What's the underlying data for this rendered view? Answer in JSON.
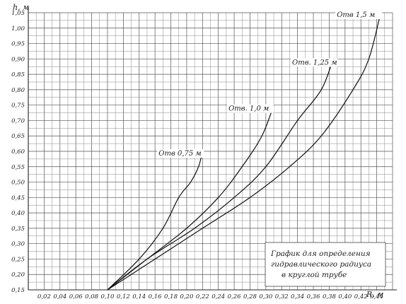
{
  "chart_data": {
    "type": "line",
    "xlabel": "R, м",
    "ylabel": "h, м",
    "xlim": [
      0.0,
      0.46
    ],
    "ylim": [
      0.15,
      1.05
    ],
    "x_ticks": [
      "0,02",
      "0,04",
      "0,06",
      "0,08",
      "0,10",
      "0,12",
      "0,14",
      "0,16",
      "0,18",
      "0,20",
      "0,22",
      "0,24",
      "0,26",
      "0,28",
      "0,30",
      "0,32",
      "0,34",
      "0,36",
      "0,38",
      "0,40",
      "0,42",
      "0,44"
    ],
    "y_ticks": [
      "0,15",
      "0,20",
      "0,25",
      "0,30",
      "0,35",
      "0,40",
      "0,45",
      "0,50",
      "0,55",
      "0,60",
      "0,65",
      "0,70",
      "0,75",
      "0,80",
      "0,85",
      "0,90",
      "0,95",
      "1,00",
      "1,05"
    ],
    "annotation": [
      "График для определения",
      "гидравлического радиуса",
      "в круглой трубе"
    ],
    "series": [
      {
        "name": "Отв 0,75 м",
        "x": [
          0.1,
          0.14,
          0.17,
          0.19,
          0.205,
          0.215,
          0.22
        ],
        "y": [
          0.15,
          0.25,
          0.35,
          0.45,
          0.5,
          0.55,
          0.6
        ]
      },
      {
        "name": "Отв. 1,0 м",
        "x": [
          0.1,
          0.15,
          0.2,
          0.24,
          0.27,
          0.295,
          0.31
        ],
        "y": [
          0.15,
          0.25,
          0.35,
          0.45,
          0.55,
          0.65,
          0.75
        ]
      },
      {
        "name": "Отв. 1,25 м",
        "x": [
          0.1,
          0.15,
          0.21,
          0.26,
          0.3,
          0.34,
          0.37,
          0.385
        ],
        "y": [
          0.15,
          0.25,
          0.35,
          0.45,
          0.55,
          0.7,
          0.8,
          0.9
        ]
      },
      {
        "name": "Отв 1,5 м",
        "x": [
          0.1,
          0.16,
          0.22,
          0.28,
          0.33,
          0.37,
          0.41,
          0.43,
          0.445
        ],
        "y": [
          0.15,
          0.25,
          0.35,
          0.45,
          0.55,
          0.65,
          0.8,
          0.9,
          1.05
        ]
      }
    ]
  }
}
